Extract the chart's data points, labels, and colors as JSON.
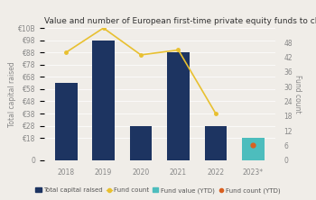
{
  "title": "Value and number of European first-time private equity funds to close",
  "years": [
    "2018",
    "2019",
    "2020",
    "2021",
    "2022",
    "2023*"
  ],
  "bar_values": [
    63,
    98,
    28,
    88,
    28,
    18
  ],
  "bar_colors": [
    "#1d3461",
    "#1d3461",
    "#1d3461",
    "#1d3461",
    "#1d3461",
    "#4dbdbd"
  ],
  "fund_count_main": [
    44,
    54,
    43,
    45,
    19
  ],
  "fund_count_ytd": 6,
  "line_color": "#e8c030",
  "ytd_dot_color": "#d96020",
  "ylabel_left": "Total capital raised",
  "ylabel_right": "Fund count",
  "ylim_left": [
    0,
    108
  ],
  "ylim_right": [
    0,
    54
  ],
  "yticks_left_vals": [
    0,
    18,
    28,
    38,
    48,
    58,
    68,
    78,
    88,
    98
  ],
  "ytick_labels_left": [
    "0",
    "€18",
    "€28",
    "€38",
    "€48",
    "€58",
    "€68",
    "€78",
    "€88",
    "€98"
  ],
  "ytick_label_top": "€10B",
  "ytick_top_val": 108,
  "yticks_right": [
    0,
    6,
    12,
    18,
    24,
    30,
    36,
    42,
    48
  ],
  "legend_labels": [
    "Total capital raised",
    "Fund count",
    "Fund value (YTD)",
    "Fund count (YTD)"
  ],
  "legend_colors": [
    "#1d3461",
    "#e8c030",
    "#4dbdbd",
    "#d96020"
  ],
  "background_color": "#f0ede8",
  "title_fontsize": 6.5,
  "axis_fontsize": 5.5,
  "legend_fontsize": 5.0
}
